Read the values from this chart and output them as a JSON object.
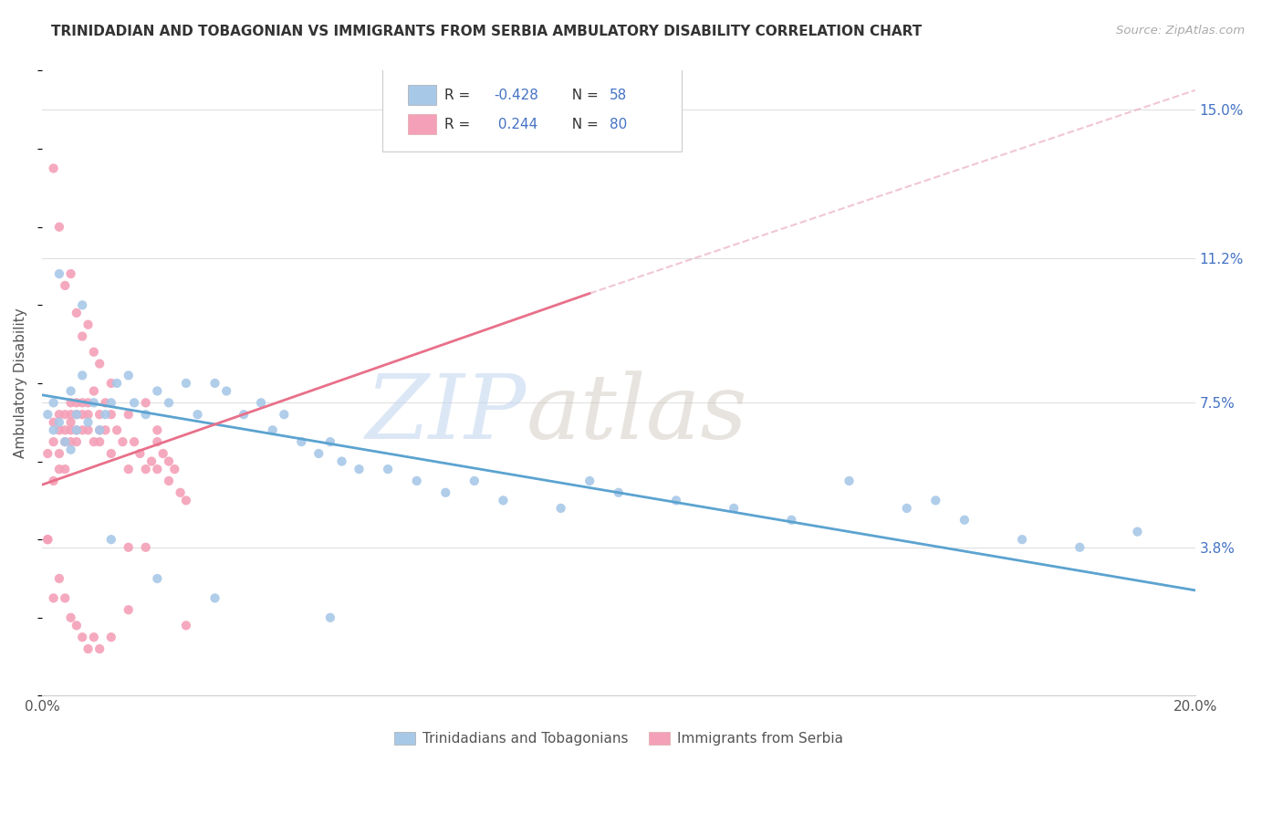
{
  "title": "TRINIDADIAN AND TOBAGONIAN VS IMMIGRANTS FROM SERBIA AMBULATORY DISABILITY CORRELATION CHART",
  "source": "Source: ZipAtlas.com",
  "ylabel": "Ambulatory Disability",
  "yticks": [
    "15.0%",
    "11.2%",
    "7.5%",
    "3.8%"
  ],
  "ytick_vals": [
    0.15,
    0.112,
    0.075,
    0.038
  ],
  "xlim": [
    0.0,
    0.2
  ],
  "ylim": [
    0.0,
    0.16
  ],
  "blue_trend": [
    0.0,
    0.077,
    0.2,
    0.027
  ],
  "pink_solid_trend": [
    0.0,
    0.054,
    0.095,
    0.103
  ],
  "pink_dash_trend": [
    0.095,
    0.103,
    0.2,
    0.155
  ],
  "blue_color": "#a8c8e8",
  "blue_line_color": "#5ba3d0",
  "pink_color": "#f4a0b8",
  "pink_line_color": "#e8708a",
  "pink_dash_color": "#e8a0b8",
  "watermark": "ZIPatlas",
  "watermark_zip_color": "#c8d8f0",
  "watermark_atlas_color": "#d0c8c8",
  "background_color": "#ffffff",
  "grid_color": "#e0e0e0",
  "legend_blue_label_r": "R = -0.428",
  "legend_blue_label_n": "N = 58",
  "legend_pink_label_r": "R =  0.244",
  "legend_pink_label_n": "N = 80",
  "blue_x": [
    0.001,
    0.002,
    0.002,
    0.003,
    0.004,
    0.005,
    0.005,
    0.006,
    0.006,
    0.007,
    0.008,
    0.009,
    0.01,
    0.011,
    0.012,
    0.013,
    0.015,
    0.016,
    0.018,
    0.02,
    0.022,
    0.025,
    0.027,
    0.03,
    0.032,
    0.035,
    0.038,
    0.04,
    0.042,
    0.045,
    0.048,
    0.05,
    0.052,
    0.055,
    0.06,
    0.065,
    0.07,
    0.075,
    0.08,
    0.09,
    0.095,
    0.1,
    0.11,
    0.12,
    0.13,
    0.14,
    0.15,
    0.155,
    0.16,
    0.17,
    0.18,
    0.19,
    0.003,
    0.007,
    0.012,
    0.02,
    0.03,
    0.05
  ],
  "blue_y": [
    0.072,
    0.068,
    0.075,
    0.07,
    0.065,
    0.063,
    0.078,
    0.072,
    0.068,
    0.082,
    0.07,
    0.075,
    0.068,
    0.072,
    0.075,
    0.08,
    0.082,
    0.075,
    0.072,
    0.078,
    0.075,
    0.08,
    0.072,
    0.08,
    0.078,
    0.072,
    0.075,
    0.068,
    0.072,
    0.065,
    0.062,
    0.065,
    0.06,
    0.058,
    0.058,
    0.055,
    0.052,
    0.055,
    0.05,
    0.048,
    0.055,
    0.052,
    0.05,
    0.048,
    0.045,
    0.055,
    0.048,
    0.05,
    0.045,
    0.04,
    0.038,
    0.042,
    0.108,
    0.1,
    0.04,
    0.03,
    0.025,
    0.02
  ],
  "pink_x": [
    0.001,
    0.001,
    0.002,
    0.002,
    0.002,
    0.003,
    0.003,
    0.003,
    0.003,
    0.004,
    0.004,
    0.004,
    0.004,
    0.005,
    0.005,
    0.005,
    0.005,
    0.005,
    0.006,
    0.006,
    0.006,
    0.006,
    0.007,
    0.007,
    0.007,
    0.008,
    0.008,
    0.008,
    0.009,
    0.009,
    0.01,
    0.01,
    0.01,
    0.011,
    0.011,
    0.012,
    0.012,
    0.013,
    0.014,
    0.015,
    0.015,
    0.016,
    0.017,
    0.018,
    0.018,
    0.019,
    0.02,
    0.02,
    0.02,
    0.021,
    0.022,
    0.022,
    0.023,
    0.024,
    0.025,
    0.002,
    0.003,
    0.004,
    0.005,
    0.006,
    0.007,
    0.008,
    0.009,
    0.01,
    0.012,
    0.015,
    0.018,
    0.001,
    0.002,
    0.003,
    0.004,
    0.005,
    0.006,
    0.007,
    0.008,
    0.009,
    0.01,
    0.012,
    0.015,
    0.025
  ],
  "pink_y": [
    0.04,
    0.062,
    0.055,
    0.065,
    0.07,
    0.068,
    0.072,
    0.062,
    0.058,
    0.068,
    0.072,
    0.058,
    0.065,
    0.07,
    0.072,
    0.068,
    0.065,
    0.075,
    0.068,
    0.072,
    0.075,
    0.065,
    0.068,
    0.075,
    0.072,
    0.068,
    0.075,
    0.072,
    0.065,
    0.078,
    0.068,
    0.072,
    0.065,
    0.075,
    0.068,
    0.072,
    0.062,
    0.068,
    0.065,
    0.072,
    0.058,
    0.065,
    0.062,
    0.058,
    0.075,
    0.06,
    0.068,
    0.058,
    0.065,
    0.062,
    0.055,
    0.06,
    0.058,
    0.052,
    0.05,
    0.135,
    0.12,
    0.105,
    0.108,
    0.098,
    0.092,
    0.095,
    0.088,
    0.085,
    0.08,
    0.038,
    0.038,
    0.04,
    0.025,
    0.03,
    0.025,
    0.02,
    0.018,
    0.015,
    0.012,
    0.015,
    0.012,
    0.015,
    0.022,
    0.018
  ]
}
